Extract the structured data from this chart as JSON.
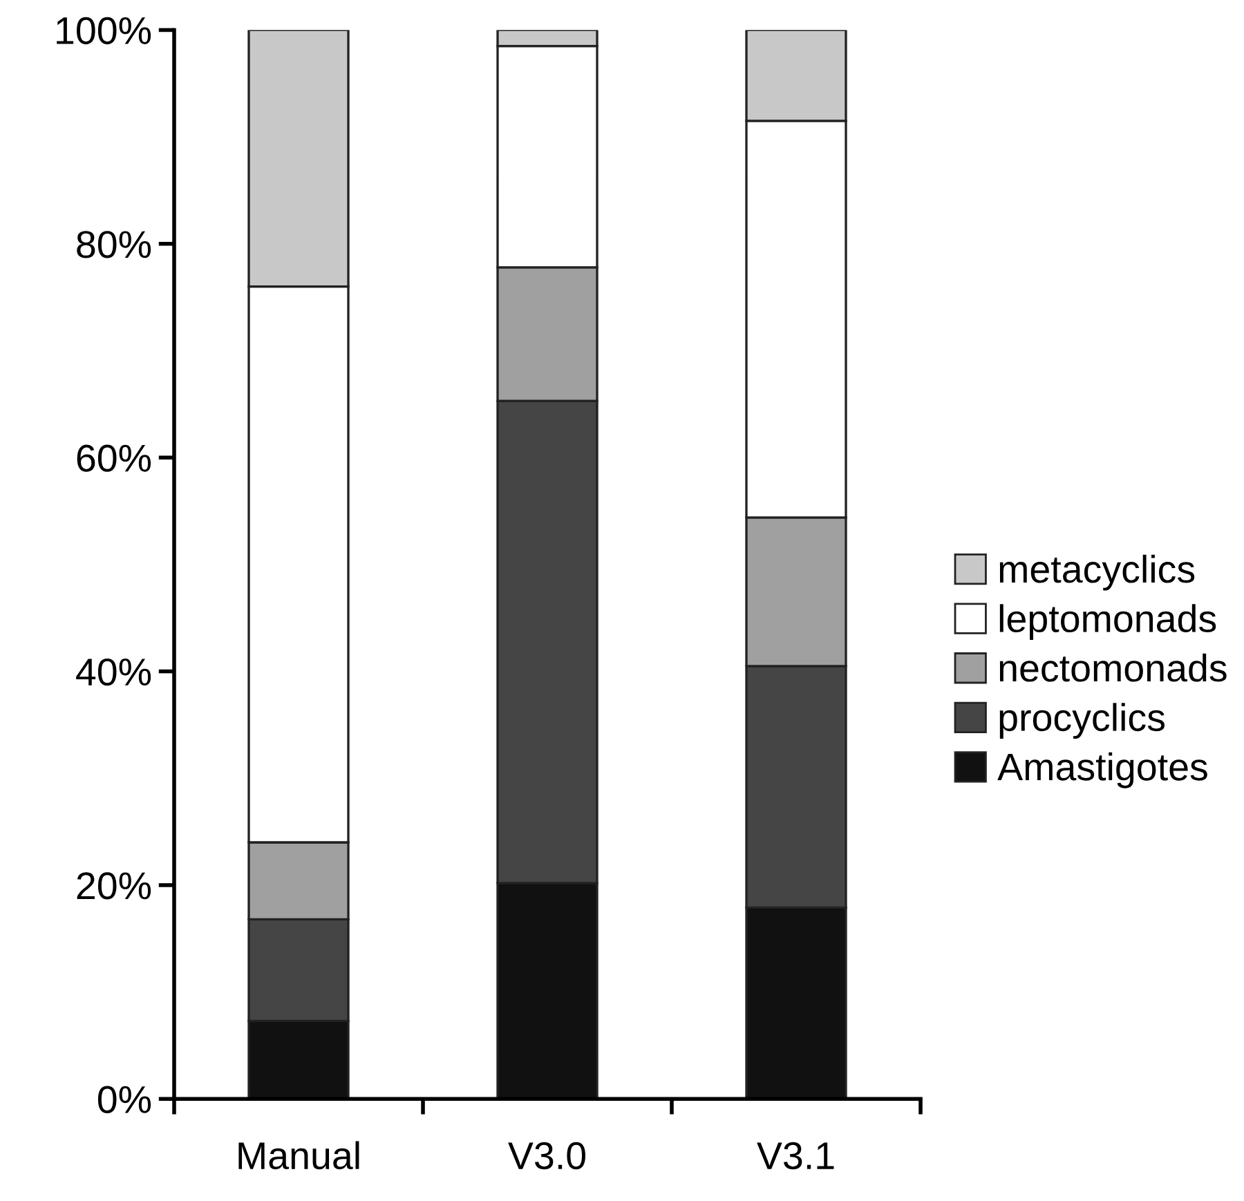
{
  "chart_data": {
    "type": "bar",
    "stacked": true,
    "categories": [
      "Manual",
      "V3.0",
      "V3.1"
    ],
    "series": [
      {
        "name": "Amastigotes",
        "color": "#111111",
        "values": [
          7.3,
          20.2,
          17.9
        ]
      },
      {
        "name": "procyclics",
        "color": "#454545",
        "values": [
          9.5,
          45.1,
          22.6
        ]
      },
      {
        "name": "nectomonads",
        "color": "#a0a0a0",
        "values": [
          7.2,
          12.5,
          13.9
        ]
      },
      {
        "name": "leptomonads",
        "color": "#ffffff",
        "values": [
          52.0,
          20.7,
          37.1
        ]
      },
      {
        "name": "metacyclics",
        "color": "#c8c8c8",
        "values": [
          24.0,
          1.5,
          8.5
        ]
      }
    ],
    "ylim": [
      0,
      100
    ],
    "yticks": [
      {
        "value": 0,
        "label": "0%"
      },
      {
        "value": 20,
        "label": "20%"
      },
      {
        "value": 40,
        "label": "40%"
      },
      {
        "value": 60,
        "label": "60%"
      },
      {
        "value": 80,
        "label": "80%"
      },
      {
        "value": 100,
        "label": "100%"
      }
    ],
    "grid": false,
    "legend": "right"
  }
}
